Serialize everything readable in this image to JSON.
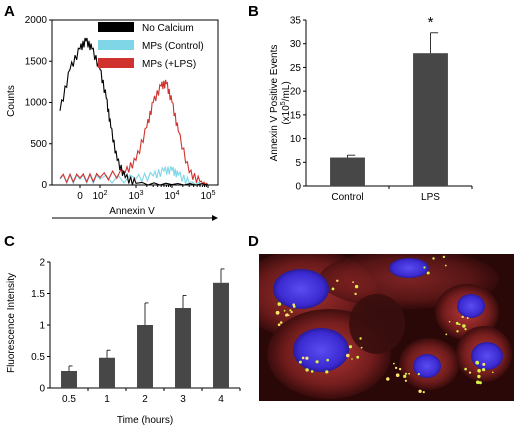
{
  "panels": {
    "a": "A",
    "b": "B",
    "c": "C",
    "d": "D"
  },
  "colors": {
    "no_calcium": "#000000",
    "mps_control": "#7fd6e6",
    "mps_lps": "#d0332e",
    "bar": "#474747"
  },
  "chart_data": [
    {
      "panel": "A",
      "type": "line",
      "xlabel": "Annexin V",
      "ylabel": "Counts",
      "x_scale": "log",
      "ylim": [
        0,
        2000
      ],
      "y_ticks": [
        "0",
        "500",
        "1000",
        "1500",
        "2000"
      ],
      "x_ticks": [
        {
          "value": 0,
          "label": "0"
        },
        {
          "value": 100,
          "base": "10",
          "exp": "2"
        },
        {
          "value": 1000,
          "base": "10",
          "exp": "3"
        },
        {
          "value": 10000,
          "base": "10",
          "exp": "4"
        },
        {
          "value": 100000,
          "base": "10",
          "exp": "5"
        }
      ],
      "legend": {
        "position": "top-right",
        "entries": [
          "No Calcium",
          "MPs (Control)",
          "MPs (+LPS)"
        ]
      },
      "series": [
        {
          "name": "No Calcium",
          "color_key": "no_calcium",
          "x": [
            -100,
            -50,
            0,
            30,
            60,
            100,
            150,
            200,
            300,
            500,
            1000,
            10000,
            100000
          ],
          "y": [
            900,
            1400,
            1650,
            1750,
            1650,
            1400,
            1050,
            700,
            300,
            90,
            20,
            5,
            0
          ]
        },
        {
          "name": "MPs (Control)",
          "color_key": "mps_control",
          "x": [
            -100,
            0,
            100,
            1000,
            3000,
            6000,
            10000,
            15000,
            30000,
            100000
          ],
          "y": [
            70,
            70,
            70,
            75,
            110,
            170,
            180,
            120,
            30,
            5
          ]
        },
        {
          "name": "MPs (+LPS)",
          "color_key": "mps_lps",
          "x": [
            -100,
            0,
            100,
            500,
            1000,
            2000,
            3000,
            5000,
            7000,
            10000,
            15000,
            30000,
            60000,
            100000
          ],
          "y": [
            80,
            85,
            90,
            150,
            300,
            700,
            1000,
            1200,
            1230,
            1000,
            650,
            150,
            40,
            0
          ]
        }
      ]
    },
    {
      "panel": "B",
      "type": "bar",
      "categories": [
        "Control",
        "LPS"
      ],
      "values": [
        6,
        28
      ],
      "errors": [
        0.5,
        4.3
      ],
      "ylim": [
        0,
        35
      ],
      "y_ticks": [
        "0",
        "5",
        "10",
        "15",
        "20",
        "25",
        "30",
        "35"
      ],
      "ylabel_line1": "Annexin V Positive Events",
      "ylabel_line2_pre": "(x10",
      "ylabel_line2_sup": "5",
      "ylabel_line2_post": "/mL)",
      "annotation": "*"
    },
    {
      "panel": "C",
      "type": "bar",
      "categories": [
        "0.5",
        "1",
        "2",
        "3",
        "4"
      ],
      "values": [
        0.27,
        0.48,
        1.0,
        1.27,
        1.67
      ],
      "errors": [
        0.08,
        0.12,
        0.35,
        0.2,
        0.22
      ],
      "ylim": [
        0,
        2
      ],
      "y_ticks": [
        "0",
        "0.5",
        "1",
        "1.5",
        "2"
      ],
      "xlabel": "Time (hours)",
      "ylabel": "Fluorescence Intensity"
    }
  ]
}
